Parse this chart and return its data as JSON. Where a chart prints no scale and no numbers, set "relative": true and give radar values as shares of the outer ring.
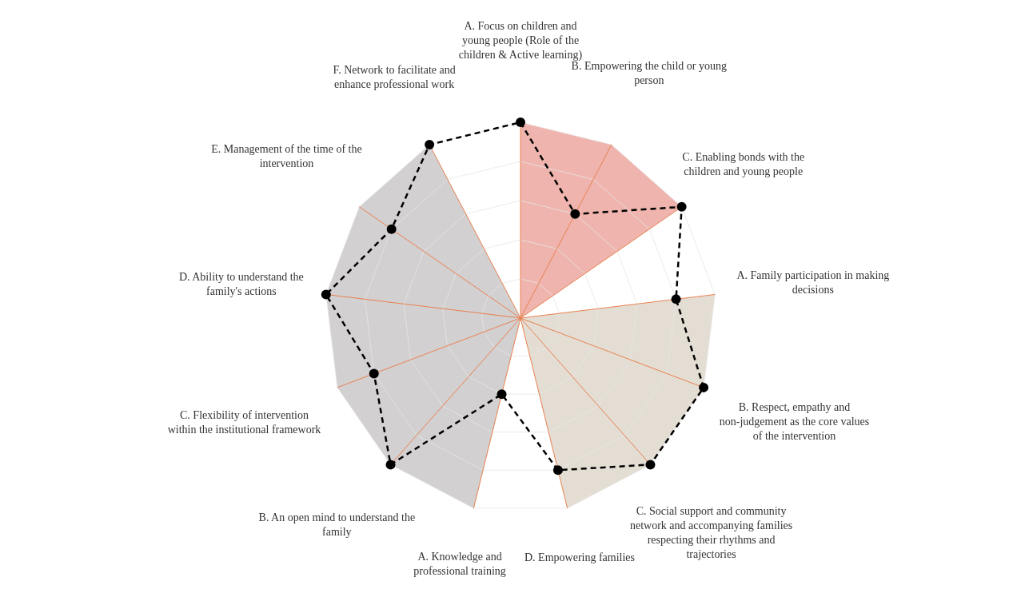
{
  "chart_data": {
    "type": "radar",
    "relative": true,
    "grid": true,
    "legend": false,
    "marker": "circle",
    "line_style": "dashed",
    "categories": [
      "A. Focus on children and young people (Role of the children & Active learning)",
      "B. Empowering the child or young person",
      "C. Enabling bonds with the children and young people",
      "A. Family participation in making decisions",
      "B. Respect, empathy and non-judgement as the core values of the intervention",
      "C. Social support and community network and accompanying families respecting their rhythms and trajectories",
      "D. Empowering families",
      "A. Knowledge and professional training",
      "B. An open mind to understand the family",
      "C. Flexibility of intervention within the institutional framework",
      "D. Ability to understand the family's actions",
      "E. Management of the time of the intervention",
      "F. Network to facilitate and enhance professional work"
    ],
    "series": [
      {
        "type": "area",
        "marker": "none",
        "color": "#efb4ad",
        "values": [
          1,
          1,
          1,
          0,
          0,
          0,
          0,
          0,
          0,
          0,
          0,
          0,
          0
        ]
      },
      {
        "type": "area",
        "marker": "none",
        "color": "#e4ddd3",
        "values": [
          0,
          0,
          0,
          1,
          1,
          1,
          1,
          0,
          0,
          0,
          0,
          0,
          0
        ]
      },
      {
        "type": "area",
        "marker": "none",
        "color": "#d3d0d1",
        "values": [
          0,
          0,
          0,
          0,
          0,
          0,
          0,
          1,
          1,
          1,
          1,
          1,
          1
        ]
      },
      {
        "color": "#000000",
        "values": [
          1,
          0.6,
          1,
          0.8,
          1,
          1,
          0.8,
          0.4,
          1,
          0.8,
          1,
          0.8,
          1
        ]
      }
    ]
  }
}
